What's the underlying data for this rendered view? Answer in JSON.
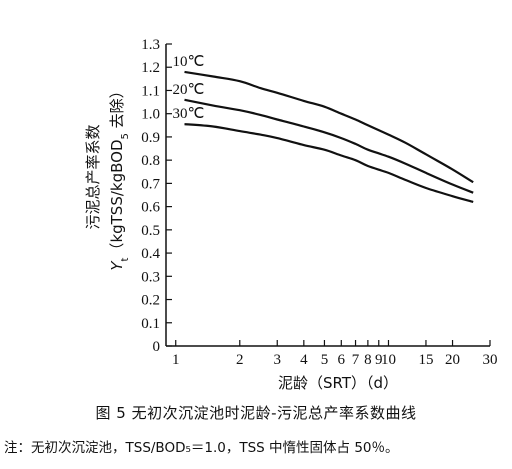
{
  "chart_data": {
    "type": "line",
    "xscale": "log",
    "xlim": [
      0.9,
      30
    ],
    "ylim": [
      0,
      1.3
    ],
    "x_ticks": [
      1,
      2,
      3,
      4,
      5,
      6,
      7,
      8,
      9,
      10,
      15,
      20,
      30
    ],
    "x_tick_labels": [
      "1",
      "2",
      "3",
      "4",
      "5",
      "6",
      "7",
      "8",
      "9",
      "10",
      "15",
      "20",
      "30"
    ],
    "y_ticks": [
      0,
      0.1,
      0.2,
      0.3,
      0.4,
      0.5,
      0.6,
      0.7,
      0.8,
      0.9,
      1.0,
      1.1,
      1.2,
      1.3
    ],
    "y_tick_labels": [
      "0",
      "0.1",
      "0.2",
      "0.3",
      "0.4",
      "0.5",
      "0.6",
      "0.7",
      "0.8",
      "0.9",
      "1.0",
      "1.1",
      "1.2",
      "1.3"
    ],
    "xlabel": "泥龄（SRT）（d）",
    "ylabel_line1": "污泥总产率系数",
    "ylabel_line2": "Y",
    "ylabel_line2_sub": "t",
    "ylabel_line2_rest": "（kgTSS/kgBOD",
    "ylabel_line2_sub2": "5",
    "ylabel_line2_end": " 去除）",
    "grid": false,
    "series": [
      {
        "name": "10℃",
        "x": [
          1.1,
          1.5,
          2,
          2.5,
          3,
          4,
          5,
          6,
          7,
          8,
          10,
          12,
          15,
          20,
          25
        ],
        "y": [
          1.18,
          1.16,
          1.14,
          1.11,
          1.09,
          1.055,
          1.03,
          1.0,
          0.975,
          0.95,
          0.91,
          0.875,
          0.825,
          0.76,
          0.705
        ]
      },
      {
        "name": "20℃",
        "x": [
          1.1,
          1.5,
          2,
          2.5,
          3,
          4,
          5,
          6,
          7,
          8,
          10,
          12,
          15,
          20,
          25
        ],
        "y": [
          1.06,
          1.035,
          1.015,
          0.995,
          0.975,
          0.945,
          0.92,
          0.895,
          0.87,
          0.845,
          0.815,
          0.785,
          0.745,
          0.695,
          0.66
        ]
      },
      {
        "name": "30℃",
        "x": [
          1.1,
          1.5,
          2,
          2.5,
          3,
          4,
          5,
          6,
          7,
          8,
          10,
          12,
          15,
          20,
          25
        ],
        "y": [
          0.955,
          0.945,
          0.925,
          0.91,
          0.895,
          0.865,
          0.845,
          0.82,
          0.8,
          0.775,
          0.745,
          0.715,
          0.68,
          0.645,
          0.62
        ]
      }
    ]
  },
  "caption": "图 5  无初次沉淀池时泥龄-污泥总产率系数曲线",
  "note": "注：无初次沉淀池，TSS/BOD₅＝1.0，TSS 中惰性固体占 50％。"
}
